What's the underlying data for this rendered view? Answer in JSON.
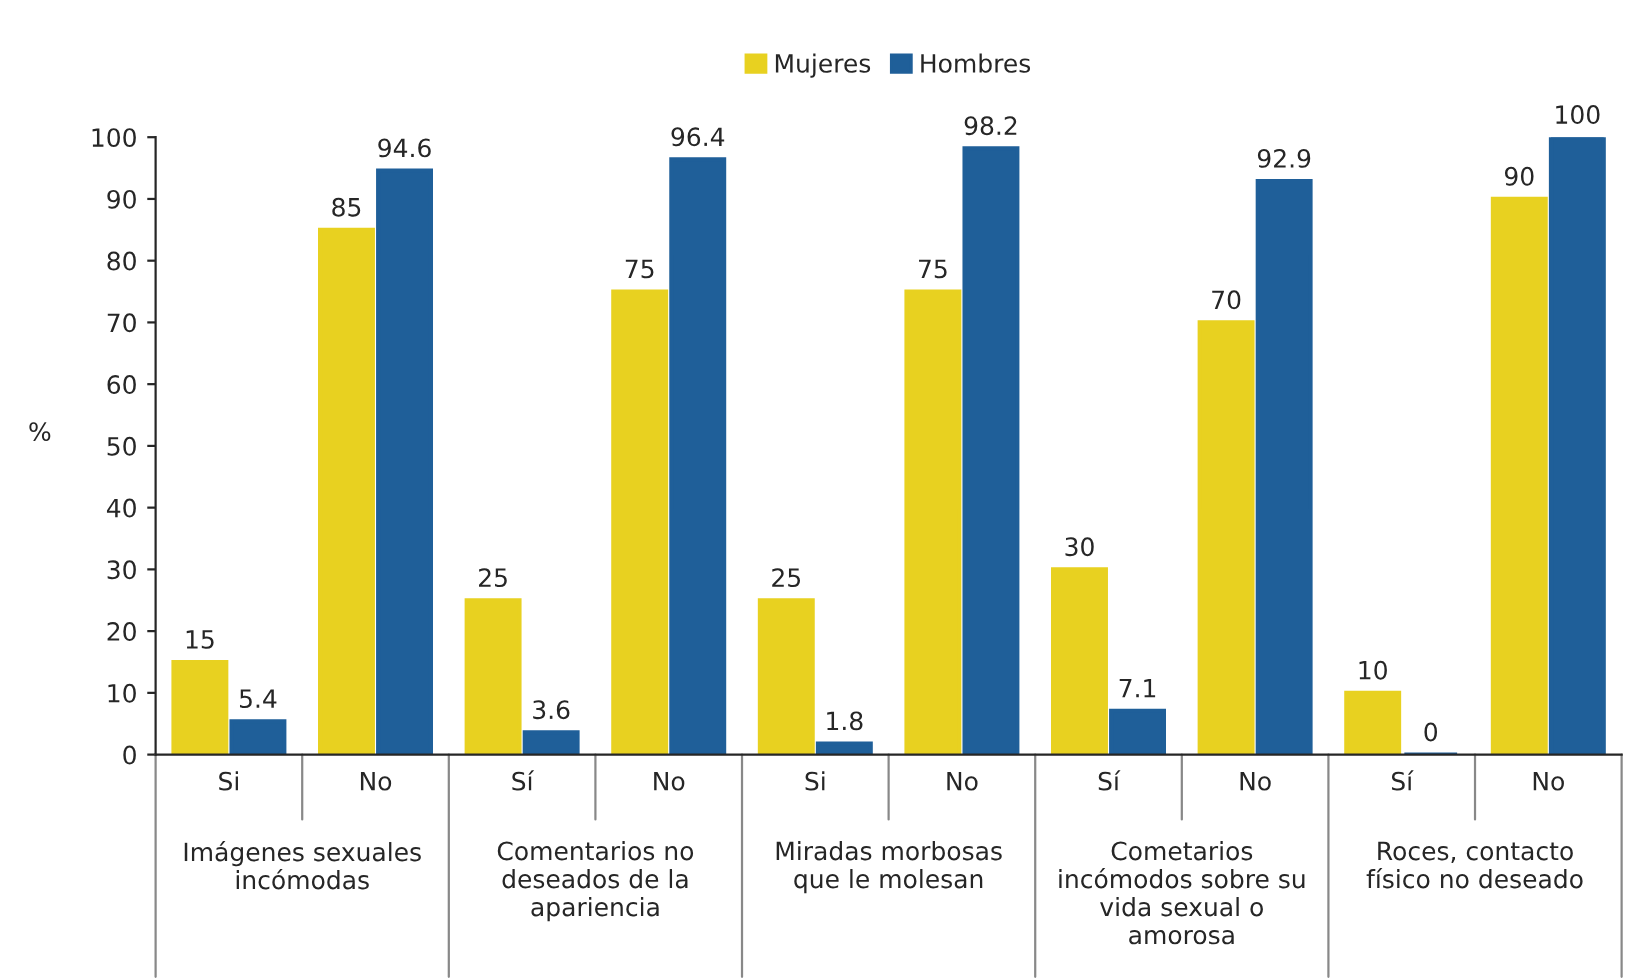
{
  "chart_data": {
    "type": "bar",
    "ylabel": "%",
    "categories": [
      "Si",
      "No",
      "Sí",
      "No",
      "Si",
      "No",
      "Sí",
      "No",
      "Sí",
      "No"
    ],
    "series": [
      {
        "name": "Mujeres",
        "color": "#e8d120",
        "values": [
          15,
          85,
          25,
          75,
          25,
          75,
          30,
          70,
          10,
          90
        ]
      },
      {
        "name": "Hombres",
        "color": "#1f5f99",
        "values": [
          5.4,
          94.6,
          3.6,
          96.4,
          1.8,
          98.2,
          7.1,
          92.9,
          0,
          100
        ]
      }
    ],
    "annotations": [
      "Imágenes sexuales incómodas",
      "Comentarios no deseados de la apariencia",
      "Miradas morbosas que le molesan",
      "Cometarios incómodos sobre su vida sexual o amorosa",
      "Roces, contacto físico no deseado"
    ],
    "ylim": [
      0,
      100
    ],
    "yticks": [
      0,
      10,
      20,
      30,
      40,
      50,
      60,
      70,
      80,
      90,
      100
    ],
    "data_labels": true,
    "legend": "top",
    "grid": false
  }
}
